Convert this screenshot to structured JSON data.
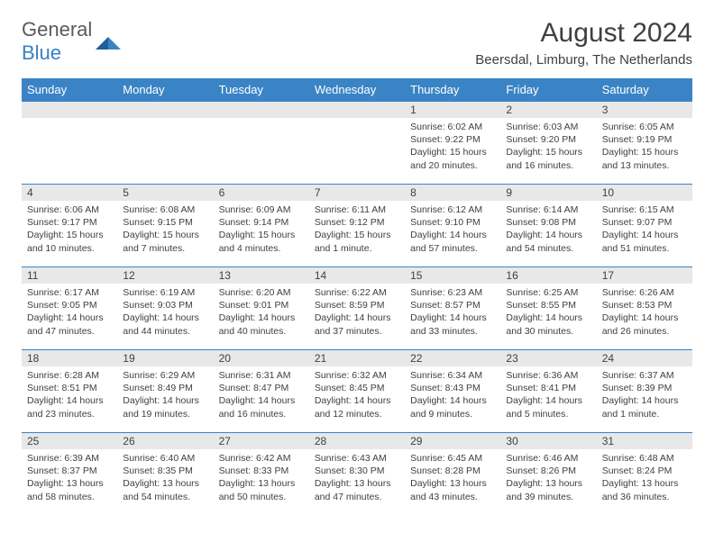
{
  "brand": {
    "general": "General",
    "blue": "Blue"
  },
  "header": {
    "title": "August 2024",
    "location": "Beersdal, Limburg, The Netherlands"
  },
  "colors": {
    "header_bg": "#3a84c6",
    "header_text": "#ffffff",
    "daynum_bg": "#e8e8e8",
    "text": "#404040",
    "border": "#3a84c6"
  },
  "weekdays": [
    "Sunday",
    "Monday",
    "Tuesday",
    "Wednesday",
    "Thursday",
    "Friday",
    "Saturday"
  ],
  "weeks": [
    [
      {
        "day": "",
        "sunrise": "",
        "sunset": "",
        "daylight": ""
      },
      {
        "day": "",
        "sunrise": "",
        "sunset": "",
        "daylight": ""
      },
      {
        "day": "",
        "sunrise": "",
        "sunset": "",
        "daylight": ""
      },
      {
        "day": "",
        "sunrise": "",
        "sunset": "",
        "daylight": ""
      },
      {
        "day": "1",
        "sunrise": "Sunrise: 6:02 AM",
        "sunset": "Sunset: 9:22 PM",
        "daylight": "Daylight: 15 hours and 20 minutes."
      },
      {
        "day": "2",
        "sunrise": "Sunrise: 6:03 AM",
        "sunset": "Sunset: 9:20 PM",
        "daylight": "Daylight: 15 hours and 16 minutes."
      },
      {
        "day": "3",
        "sunrise": "Sunrise: 6:05 AM",
        "sunset": "Sunset: 9:19 PM",
        "daylight": "Daylight: 15 hours and 13 minutes."
      }
    ],
    [
      {
        "day": "4",
        "sunrise": "Sunrise: 6:06 AM",
        "sunset": "Sunset: 9:17 PM",
        "daylight": "Daylight: 15 hours and 10 minutes."
      },
      {
        "day": "5",
        "sunrise": "Sunrise: 6:08 AM",
        "sunset": "Sunset: 9:15 PM",
        "daylight": "Daylight: 15 hours and 7 minutes."
      },
      {
        "day": "6",
        "sunrise": "Sunrise: 6:09 AM",
        "sunset": "Sunset: 9:14 PM",
        "daylight": "Daylight: 15 hours and 4 minutes."
      },
      {
        "day": "7",
        "sunrise": "Sunrise: 6:11 AM",
        "sunset": "Sunset: 9:12 PM",
        "daylight": "Daylight: 15 hours and 1 minute."
      },
      {
        "day": "8",
        "sunrise": "Sunrise: 6:12 AM",
        "sunset": "Sunset: 9:10 PM",
        "daylight": "Daylight: 14 hours and 57 minutes."
      },
      {
        "day": "9",
        "sunrise": "Sunrise: 6:14 AM",
        "sunset": "Sunset: 9:08 PM",
        "daylight": "Daylight: 14 hours and 54 minutes."
      },
      {
        "day": "10",
        "sunrise": "Sunrise: 6:15 AM",
        "sunset": "Sunset: 9:07 PM",
        "daylight": "Daylight: 14 hours and 51 minutes."
      }
    ],
    [
      {
        "day": "11",
        "sunrise": "Sunrise: 6:17 AM",
        "sunset": "Sunset: 9:05 PM",
        "daylight": "Daylight: 14 hours and 47 minutes."
      },
      {
        "day": "12",
        "sunrise": "Sunrise: 6:19 AM",
        "sunset": "Sunset: 9:03 PM",
        "daylight": "Daylight: 14 hours and 44 minutes."
      },
      {
        "day": "13",
        "sunrise": "Sunrise: 6:20 AM",
        "sunset": "Sunset: 9:01 PM",
        "daylight": "Daylight: 14 hours and 40 minutes."
      },
      {
        "day": "14",
        "sunrise": "Sunrise: 6:22 AM",
        "sunset": "Sunset: 8:59 PM",
        "daylight": "Daylight: 14 hours and 37 minutes."
      },
      {
        "day": "15",
        "sunrise": "Sunrise: 6:23 AM",
        "sunset": "Sunset: 8:57 PM",
        "daylight": "Daylight: 14 hours and 33 minutes."
      },
      {
        "day": "16",
        "sunrise": "Sunrise: 6:25 AM",
        "sunset": "Sunset: 8:55 PM",
        "daylight": "Daylight: 14 hours and 30 minutes."
      },
      {
        "day": "17",
        "sunrise": "Sunrise: 6:26 AM",
        "sunset": "Sunset: 8:53 PM",
        "daylight": "Daylight: 14 hours and 26 minutes."
      }
    ],
    [
      {
        "day": "18",
        "sunrise": "Sunrise: 6:28 AM",
        "sunset": "Sunset: 8:51 PM",
        "daylight": "Daylight: 14 hours and 23 minutes."
      },
      {
        "day": "19",
        "sunrise": "Sunrise: 6:29 AM",
        "sunset": "Sunset: 8:49 PM",
        "daylight": "Daylight: 14 hours and 19 minutes."
      },
      {
        "day": "20",
        "sunrise": "Sunrise: 6:31 AM",
        "sunset": "Sunset: 8:47 PM",
        "daylight": "Daylight: 14 hours and 16 minutes."
      },
      {
        "day": "21",
        "sunrise": "Sunrise: 6:32 AM",
        "sunset": "Sunset: 8:45 PM",
        "daylight": "Daylight: 14 hours and 12 minutes."
      },
      {
        "day": "22",
        "sunrise": "Sunrise: 6:34 AM",
        "sunset": "Sunset: 8:43 PM",
        "daylight": "Daylight: 14 hours and 9 minutes."
      },
      {
        "day": "23",
        "sunrise": "Sunrise: 6:36 AM",
        "sunset": "Sunset: 8:41 PM",
        "daylight": "Daylight: 14 hours and 5 minutes."
      },
      {
        "day": "24",
        "sunrise": "Sunrise: 6:37 AM",
        "sunset": "Sunset: 8:39 PM",
        "daylight": "Daylight: 14 hours and 1 minute."
      }
    ],
    [
      {
        "day": "25",
        "sunrise": "Sunrise: 6:39 AM",
        "sunset": "Sunset: 8:37 PM",
        "daylight": "Daylight: 13 hours and 58 minutes."
      },
      {
        "day": "26",
        "sunrise": "Sunrise: 6:40 AM",
        "sunset": "Sunset: 8:35 PM",
        "daylight": "Daylight: 13 hours and 54 minutes."
      },
      {
        "day": "27",
        "sunrise": "Sunrise: 6:42 AM",
        "sunset": "Sunset: 8:33 PM",
        "daylight": "Daylight: 13 hours and 50 minutes."
      },
      {
        "day": "28",
        "sunrise": "Sunrise: 6:43 AM",
        "sunset": "Sunset: 8:30 PM",
        "daylight": "Daylight: 13 hours and 47 minutes."
      },
      {
        "day": "29",
        "sunrise": "Sunrise: 6:45 AM",
        "sunset": "Sunset: 8:28 PM",
        "daylight": "Daylight: 13 hours and 43 minutes."
      },
      {
        "day": "30",
        "sunrise": "Sunrise: 6:46 AM",
        "sunset": "Sunset: 8:26 PM",
        "daylight": "Daylight: 13 hours and 39 minutes."
      },
      {
        "day": "31",
        "sunrise": "Sunrise: 6:48 AM",
        "sunset": "Sunset: 8:24 PM",
        "daylight": "Daylight: 13 hours and 36 minutes."
      }
    ]
  ]
}
